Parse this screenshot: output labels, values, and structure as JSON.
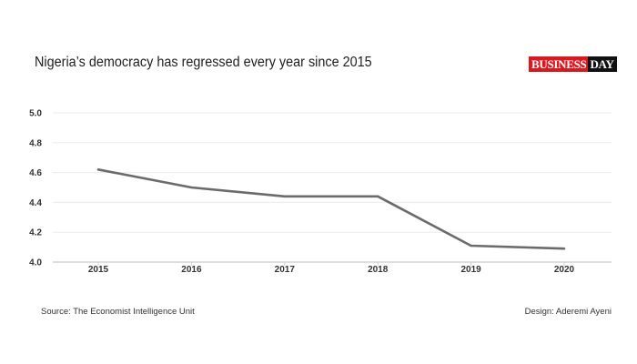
{
  "chart_data": {
    "type": "line",
    "title": "Nigeria’s democracy has regressed every year since 2015",
    "xlabel": "",
    "ylabel": "",
    "categories": [
      "2015",
      "2016",
      "2017",
      "2018",
      "2019",
      "2020"
    ],
    "series": [
      {
        "values": [
          4.62,
          4.5,
          4.44,
          4.44,
          4.11,
          4.09
        ]
      }
    ],
    "ylim": [
      4.0,
      5.0
    ],
    "yticks": [
      "4.0",
      "4.2",
      "4.4",
      "4.6",
      "4.8",
      "5.0"
    ],
    "grid": true,
    "line_color": "#6b6b6b"
  },
  "brand": {
    "part1": "BUSINESS",
    "part2": "DAY",
    "red": "#d71920",
    "dark": "#111111"
  },
  "footer": {
    "source": "Source: The Economist Intelligence Unit",
    "design": "Design: Aderemi Ayeni"
  }
}
